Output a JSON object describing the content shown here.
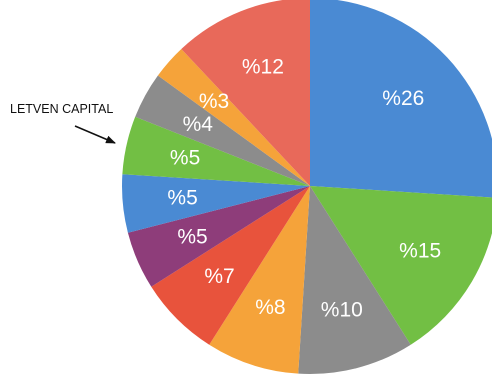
{
  "chart_data": {
    "type": "pie",
    "title": "",
    "start_angle_deg": 0,
    "direction": "clockwise",
    "slices": [
      {
        "label": "%26",
        "value": 26,
        "color": "#4a8ad3"
      },
      {
        "label": "%15",
        "value": 15,
        "color": "#72bf44"
      },
      {
        "label": "%10",
        "value": 10,
        "color": "#8c8c8c"
      },
      {
        "label": "%8",
        "value": 8,
        "color": "#f5a33a"
      },
      {
        "label": "%7",
        "value": 7,
        "color": "#e8533c"
      },
      {
        "label": "%5",
        "value": 5,
        "color": "#8e3d7a"
      },
      {
        "label": "%5",
        "value": 5,
        "color": "#4a8ad3"
      },
      {
        "label": "%5",
        "value": 5,
        "color": "#72bf44"
      },
      {
        "label": "%4",
        "value": 4,
        "color": "#8c8c8c"
      },
      {
        "label": "%3",
        "value": 3,
        "color": "#f5a33a"
      },
      {
        "label": "%12",
        "value": 12,
        "color": "#e8695a"
      }
    ],
    "annotations": [
      {
        "text": "LETVEN CAPITAL",
        "points_to_slice": 7
      }
    ]
  }
}
